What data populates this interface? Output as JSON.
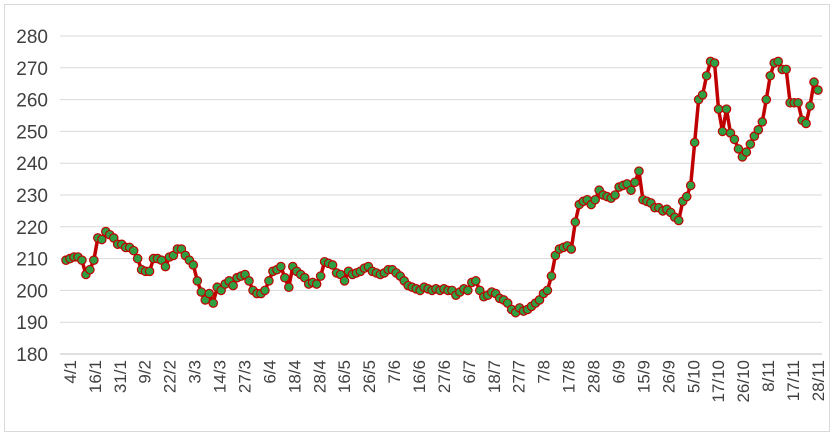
{
  "chart_data": {
    "type": "line",
    "ylim": [
      180,
      280
    ],
    "yticks": [
      180,
      190,
      200,
      210,
      220,
      230,
      240,
      250,
      260,
      270,
      280
    ],
    "xtick_labels": [
      "4/1",
      "16/1",
      "31/1",
      "9/2",
      "22/2",
      "3/3",
      "14/3",
      "27/3",
      "6/4",
      "18/4",
      "28/4",
      "16/5",
      "26/5",
      "7/6",
      "16/6",
      "27/6",
      "6/7",
      "18/7",
      "27/7",
      "7/8",
      "17/8",
      "28/8",
      "6/9",
      "15/9",
      "26/9",
      "5/10",
      "17/10",
      "26/10",
      "8/11",
      "17/11",
      "28/11"
    ],
    "grid": true,
    "legend": "none",
    "line_color": "#c00000",
    "marker_fill": "#2ea043",
    "marker_edge": "#c00000",
    "series": [
      {
        "values": [
          209.5,
          210,
          210.5,
          210.5,
          209.5,
          205,
          206.5,
          209.5,
          216.5,
          216,
          218.5,
          217.5,
          216.5,
          214.5,
          214.5,
          213.5,
          213.5,
          212.5,
          210,
          206.5,
          206,
          206,
          210,
          210,
          209.5,
          207.5,
          210.5,
          211,
          213,
          213,
          211,
          209.5,
          208,
          203,
          199.5,
          197,
          199,
          196,
          201,
          200,
          202,
          203,
          201.5,
          204,
          204.5,
          205,
          203,
          200,
          199,
          199,
          200,
          203,
          206,
          206.5,
          207.5,
          204,
          201,
          207.5,
          206,
          205,
          204,
          202,
          202.5,
          202,
          204.5,
          209,
          208.5,
          208,
          205.5,
          205,
          203,
          206,
          205,
          205.5,
          206,
          207,
          207.5,
          206,
          205.5,
          205,
          205.5,
          206.5,
          206.5,
          205.5,
          204.5,
          203,
          201.5,
          201,
          200.5,
          200,
          201,
          200.5,
          200,
          200.5,
          200,
          200.5,
          200,
          200,
          198.5,
          199.5,
          200.5,
          200,
          202.5,
          203,
          200,
          198,
          198.5,
          199.5,
          199,
          197.5,
          197,
          196,
          194,
          193,
          194.5,
          193.5,
          194,
          195,
          196,
          197,
          199,
          200,
          204.5,
          211,
          213,
          213.5,
          214,
          213,
          221.5,
          227,
          228,
          228.5,
          227,
          228.5,
          231.5,
          230,
          229.5,
          229,
          230,
          232.5,
          233,
          233.5,
          231.5,
          234,
          237.5,
          228.5,
          228,
          227.5,
          226,
          226,
          225,
          225.5,
          224.5,
          223,
          222,
          228,
          229.5,
          233,
          246.5,
          260,
          261.5,
          267.5,
          272,
          271.5,
          257,
          250,
          257,
          249.5,
          247.5,
          244.5,
          242,
          243.5,
          246,
          248.5,
          250.5,
          253,
          260,
          267.5,
          271.5,
          272,
          269.5,
          269.5,
          259,
          259,
          259,
          253.5,
          252.5,
          258,
          265.5,
          263
        ]
      }
    ]
  }
}
